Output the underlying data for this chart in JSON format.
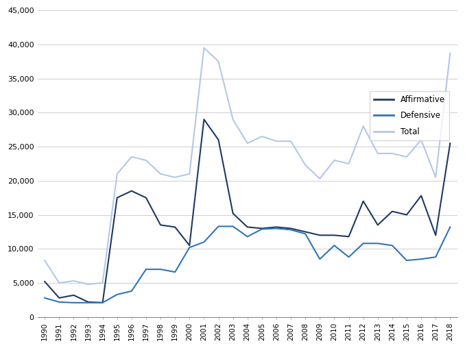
{
  "years": [
    1990,
    1991,
    1992,
    1993,
    1994,
    1995,
    1996,
    1997,
    1998,
    1999,
    2000,
    2001,
    2002,
    2003,
    2004,
    2005,
    2006,
    2007,
    2008,
    2009,
    2010,
    2011,
    2012,
    2013,
    2014,
    2015,
    2016,
    2017,
    2018
  ],
  "affirmative": [
    5200,
    2800,
    3200,
    2200,
    2100,
    17500,
    18500,
    17500,
    13500,
    13200,
    10500,
    29000,
    26000,
    15200,
    13200,
    13000,
    13200,
    13000,
    12500,
    12000,
    12000,
    11800,
    17000,
    13500,
    15500,
    15000,
    17800,
    12000,
    25500
  ],
  "defensive": [
    2800,
    2200,
    2100,
    2100,
    2100,
    3300,
    3800,
    7000,
    7000,
    6600,
    10200,
    11000,
    13300,
    13300,
    11800,
    12900,
    13000,
    12800,
    12200,
    8500,
    10500,
    8800,
    10800,
    10800,
    10500,
    8300,
    8500,
    8800,
    13200
  ],
  "total": [
    8300,
    5000,
    5300,
    4800,
    5000,
    21000,
    23500,
    23000,
    21000,
    20500,
    21000,
    39500,
    37500,
    29000,
    25500,
    26500,
    25800,
    25800,
    22300,
    20300,
    23000,
    22500,
    28000,
    24000,
    24000,
    23500,
    26000,
    20500,
    38700
  ],
  "ylim": [
    0,
    45000
  ],
  "yticks": [
    0,
    5000,
    10000,
    15000,
    20000,
    25000,
    30000,
    35000,
    40000,
    45000
  ],
  "affirmative_color": "#1f3864",
  "defensive_color": "#2e75b6",
  "total_color": "#b4c7e7",
  "linewidth": 1.5,
  "legend_labels": [
    "Affirmative",
    "Defensive",
    "Total"
  ],
  "background_color": "#ffffff",
  "grid_color": "#d3d3d3"
}
